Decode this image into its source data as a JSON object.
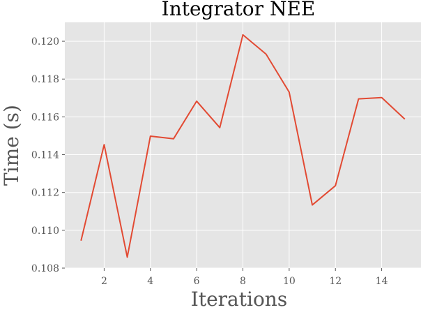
{
  "chart_data": {
    "type": "line",
    "title": "Integrator NEE",
    "xlabel": "Iterations",
    "ylabel": "Time (s)",
    "xlim": [
      0.3,
      15.7
    ],
    "ylim": [
      0.108,
      0.121
    ],
    "xticks": [
      2,
      4,
      6,
      8,
      10,
      12,
      14
    ],
    "xtick_labels": [
      "2",
      "4",
      "6",
      "8",
      "10",
      "12",
      "14"
    ],
    "yticks": [
      0.108,
      0.11,
      0.112,
      0.114,
      0.116,
      0.118,
      0.12
    ],
    "ytick_labels": [
      "0.108",
      "0.110",
      "0.112",
      "0.114",
      "0.116",
      "0.118",
      "0.120"
    ],
    "grid": true,
    "background_color": "#e5e5e5",
    "series": [
      {
        "color": "#e24a33",
        "x": [
          1,
          2,
          3,
          4,
          5,
          6,
          7,
          8,
          9,
          10,
          11,
          12,
          13,
          14,
          15
        ],
        "y": [
          0.10945,
          0.11453,
          0.10858,
          0.11498,
          0.11484,
          0.11683,
          0.11543,
          0.12034,
          0.11932,
          0.11731,
          0.11134,
          0.11236,
          0.11695,
          0.11702,
          0.11588
        ]
      }
    ]
  }
}
